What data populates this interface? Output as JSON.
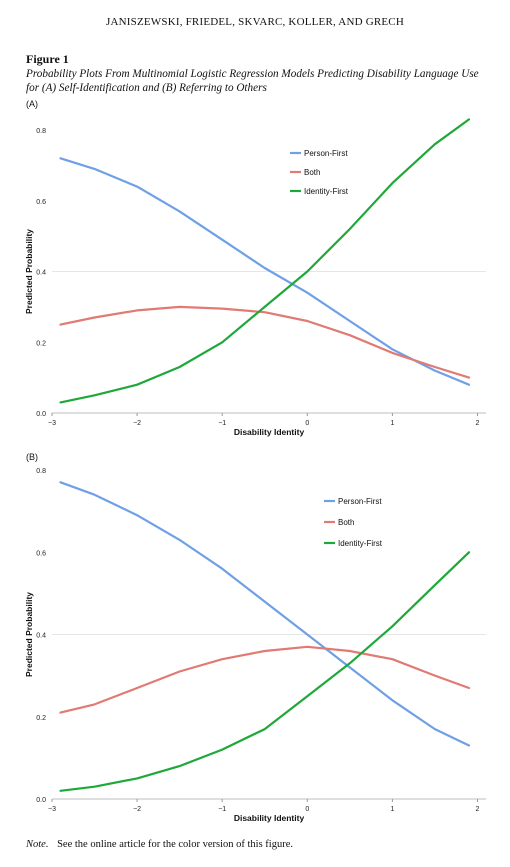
{
  "header": {
    "running_head": "JANISZEWSKI, FRIEDEL, SKVARC, KOLLER, AND GRECH"
  },
  "figure": {
    "label": "Figure 1",
    "caption_line1": "Probability Plots From Multinomial Logistic Regression Models Predicting Disability Language Use",
    "caption_line2": "for (A) Self-Identification and (B) Referring to Others"
  },
  "note": {
    "label": "Note.",
    "text": "See the online article for the color version of this figure."
  },
  "colors": {
    "person_first": "#6fa0e6",
    "both": "#e07a72",
    "identity_first": "#1fa83a",
    "grid": "#e6e6e6"
  },
  "chart_data": [
    {
      "type": "line",
      "panel_label": "(A)",
      "xlabel": "Disability Identity",
      "ylabel": "Predicted Probability",
      "xlim": [
        -3,
        2.1
      ],
      "ylim": [
        0,
        0.8
      ],
      "x_ticks": [
        -3,
        -2,
        -1,
        0,
        1,
        2
      ],
      "x_tick_labels": [
        "−3",
        "−2",
        "−1",
        "0",
        "1",
        "2"
      ],
      "y_ticks": [
        0,
        0.2,
        0.4,
        0.6,
        0.8
      ],
      "y_tick_labels": [
        "0.0",
        "0.2",
        "0.4",
        "0.6",
        "0.8"
      ],
      "grid": "horizontal at 0.4",
      "legend_position": "upper-middle",
      "x": [
        -2.9,
        -2.5,
        -2.0,
        -1.5,
        -1.0,
        -0.5,
        0.0,
        0.5,
        1.0,
        1.5,
        1.9
      ],
      "series": [
        {
          "name": "Person-First",
          "color": "#6fa0e6",
          "values": [
            0.72,
            0.69,
            0.64,
            0.57,
            0.49,
            0.41,
            0.34,
            0.26,
            0.18,
            0.12,
            0.08
          ]
        },
        {
          "name": "Both",
          "color": "#e07a72",
          "values": [
            0.25,
            0.27,
            0.29,
            0.3,
            0.295,
            0.285,
            0.26,
            0.22,
            0.17,
            0.13,
            0.1
          ]
        },
        {
          "name": "Identity-First",
          "color": "#1fa83a",
          "values": [
            0.03,
            0.05,
            0.08,
            0.13,
            0.2,
            0.3,
            0.4,
            0.52,
            0.65,
            0.76,
            0.83
          ]
        }
      ]
    },
    {
      "type": "line",
      "panel_label": "(B)",
      "xlabel": "Disability Identity",
      "ylabel": "Predicted Probability",
      "xlim": [
        -3,
        2.1
      ],
      "ylim": [
        0,
        0.8
      ],
      "x_ticks": [
        -3,
        -2,
        -1,
        0,
        1,
        2
      ],
      "x_tick_labels": [
        "−3",
        "−2",
        "−1",
        "0",
        "1",
        "2"
      ],
      "y_ticks": [
        0,
        0.2,
        0.4,
        0.6,
        0.8
      ],
      "y_tick_labels": [
        "0.0",
        "0.2",
        "0.4",
        "0.6",
        "0.8"
      ],
      "grid": "horizontal at 0.4",
      "legend_position": "upper-right",
      "x": [
        -2.9,
        -2.5,
        -2.0,
        -1.5,
        -1.0,
        -0.5,
        0.0,
        0.5,
        1.0,
        1.5,
        1.9
      ],
      "series": [
        {
          "name": "Person-First",
          "color": "#6fa0e6",
          "values": [
            0.77,
            0.74,
            0.69,
            0.63,
            0.56,
            0.48,
            0.4,
            0.32,
            0.24,
            0.17,
            0.13
          ]
        },
        {
          "name": "Both",
          "color": "#e07a72",
          "values": [
            0.21,
            0.23,
            0.27,
            0.31,
            0.34,
            0.36,
            0.37,
            0.36,
            0.34,
            0.3,
            0.27
          ]
        },
        {
          "name": "Identity-First",
          "color": "#1fa83a",
          "values": [
            0.02,
            0.03,
            0.05,
            0.08,
            0.12,
            0.17,
            0.25,
            0.33,
            0.42,
            0.52,
            0.6
          ]
        }
      ]
    }
  ]
}
